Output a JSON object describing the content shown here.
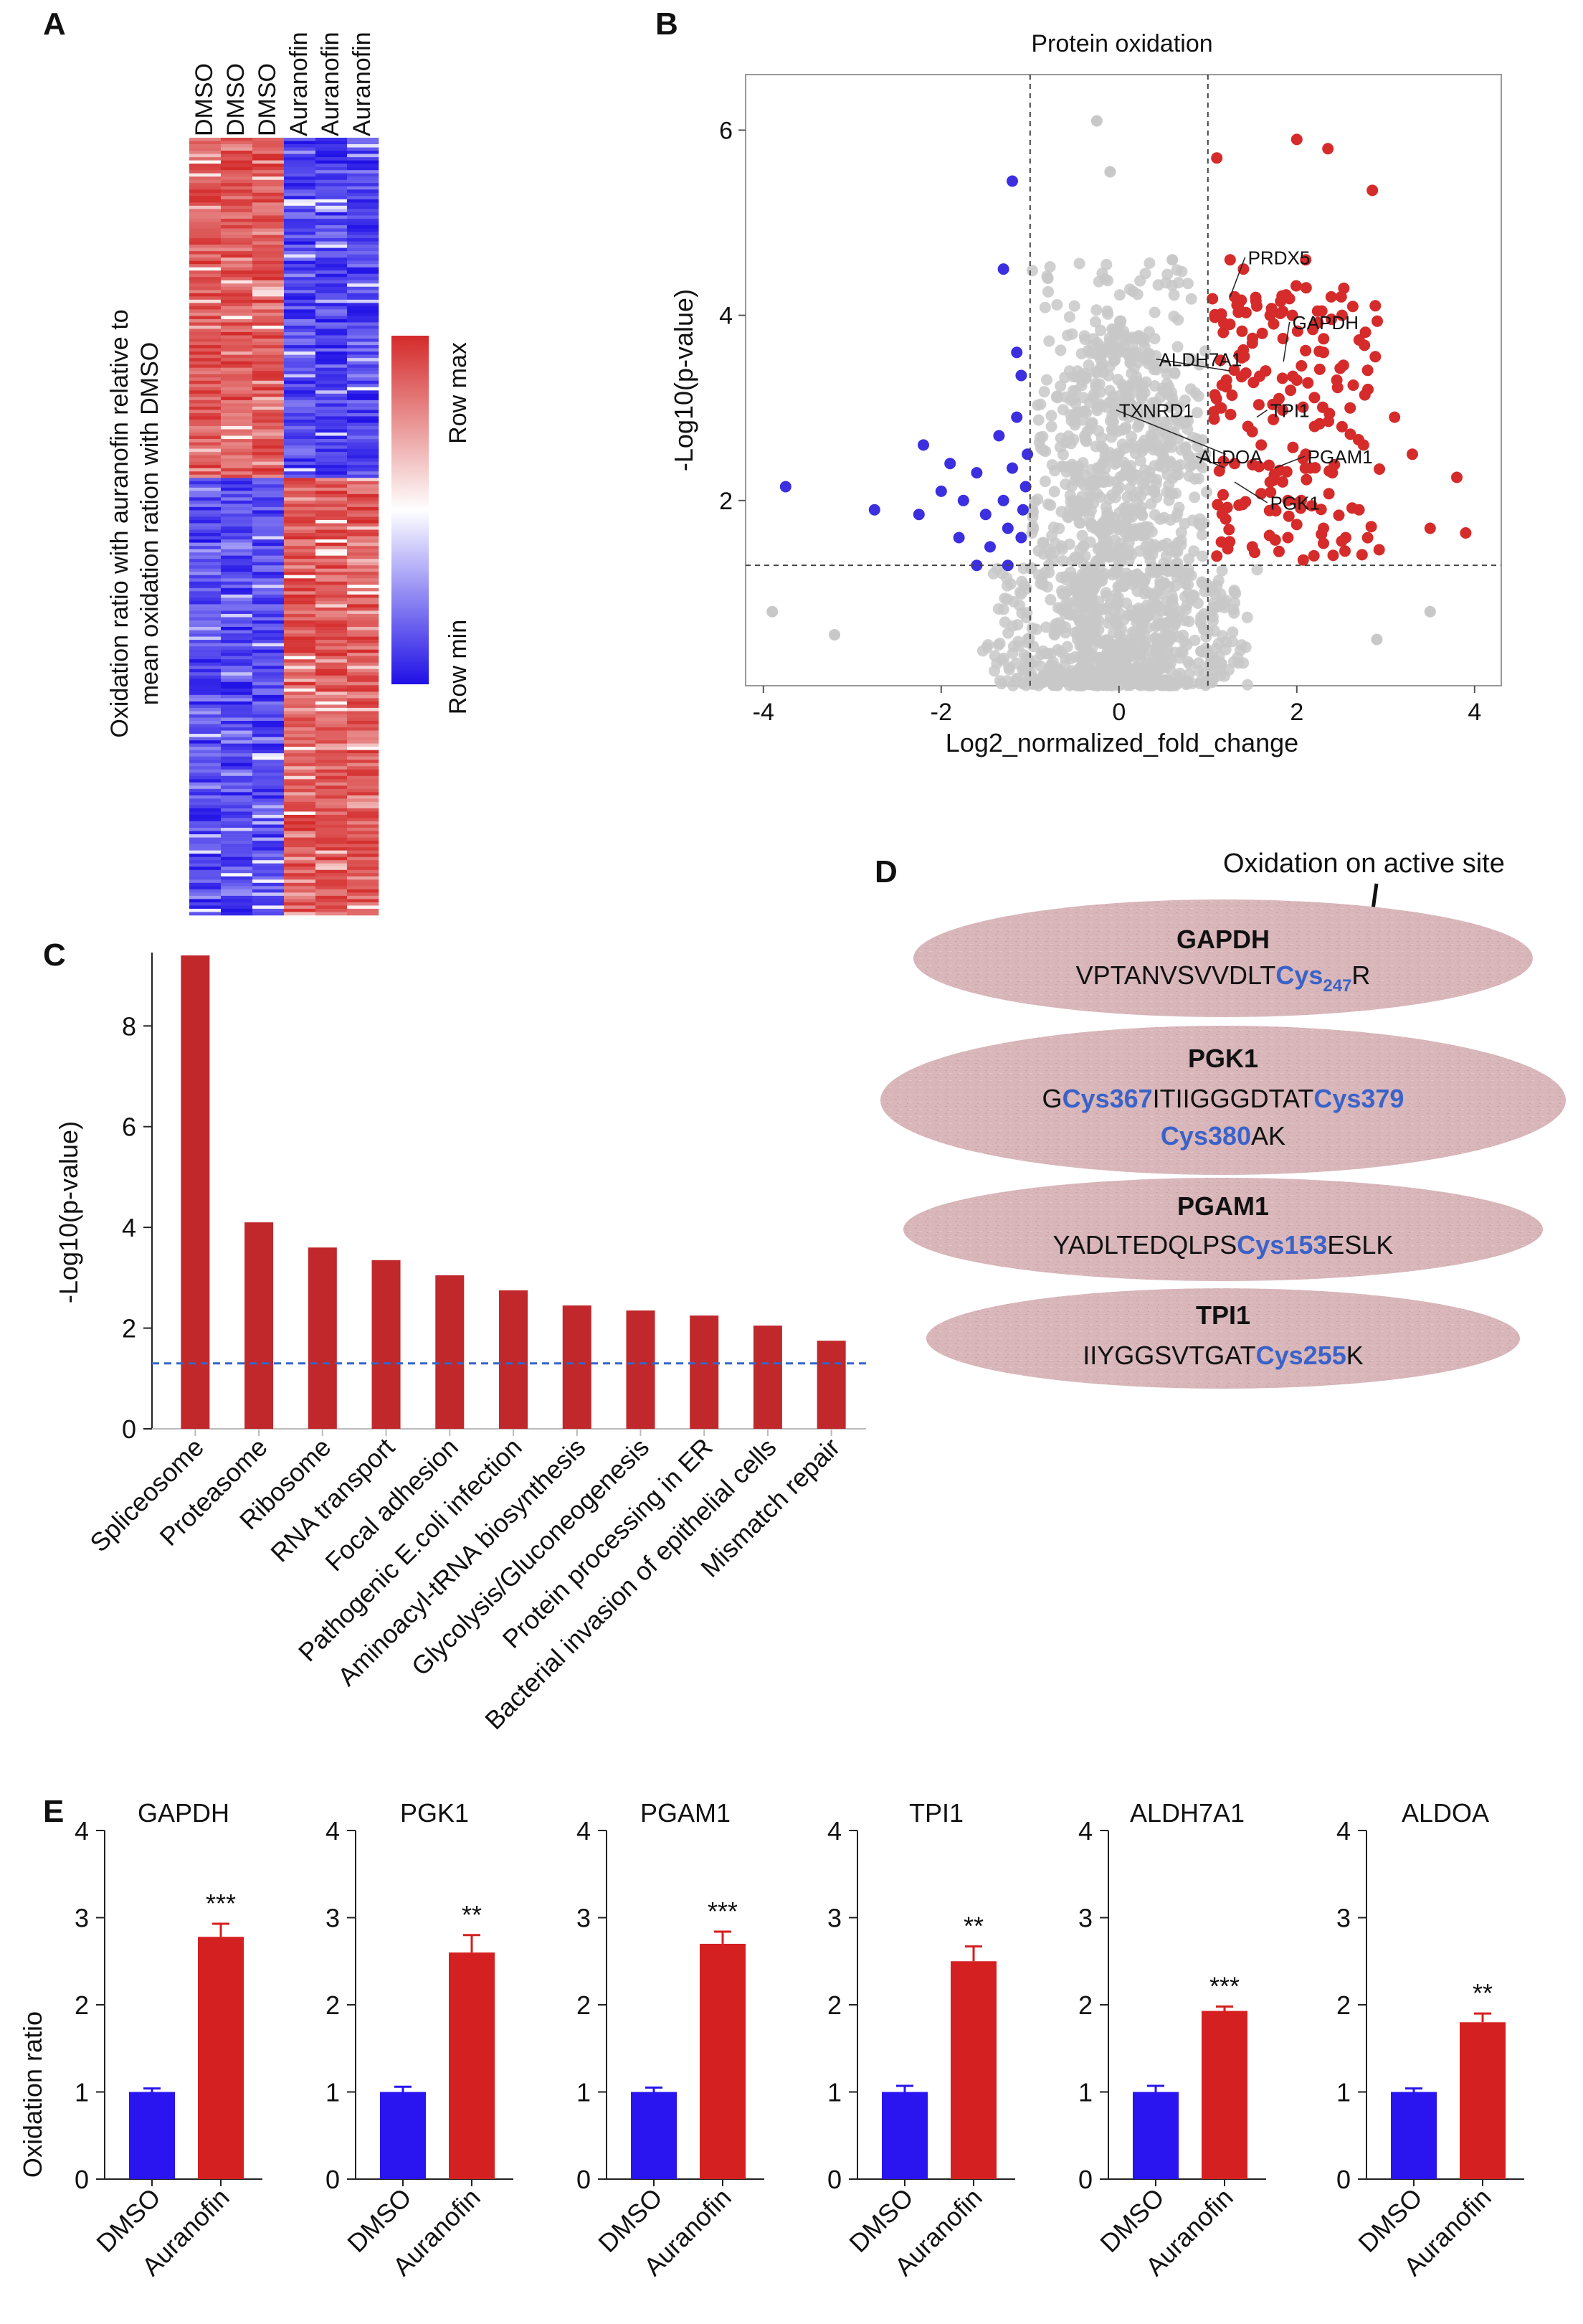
{
  "panels": {
    "A": {
      "letter": "A",
      "column_labels": [
        "DMSO",
        "DMSO",
        "DMSO",
        "Auranofin",
        "Auranofin",
        "Auranofin"
      ],
      "y_title_line1": "Oxidation ratio with auranofin relative to",
      "y_title_line2": "mean oxidation ration with DMSO",
      "legend_max": "Row max",
      "legend_min": "Row min",
      "colors": {
        "max": "#d42a2a",
        "mid": "#ffffff",
        "min": "#1f10e6"
      }
    },
    "B": {
      "letter": "B",
      "title": "Protein oxidation",
      "xlabel": "Log2_normalized_fold_change",
      "ylabel": "-Log10(p-value)",
      "x_ticks": [
        "-4",
        "-2",
        "0",
        "2",
        "4"
      ],
      "y_ticks": [
        "2",
        "4",
        "6"
      ],
      "labels": [
        "PRDX5",
        "GAPDH",
        "ALDH7A1",
        "TXNRD1",
        "TPI1",
        "ALDOA",
        "PGAM1",
        "PGK1"
      ],
      "colors": {
        "down": "#3b2fe0",
        "up": "#d62b2b",
        "ns": "#c8c8c8"
      }
    },
    "C": {
      "letter": "C",
      "ylabel": "-Log10(p-value)",
      "y_ticks": [
        "0",
        "2",
        "4",
        "6",
        "8"
      ],
      "bar_color": "#c0282c",
      "threshold_color": "#3366cc"
    },
    "D": {
      "letter": "D",
      "annotation": "Oxidation on active site",
      "peptides": [
        {
          "protein": "GAPDH",
          "seq_a": "VPTANVSVVDLT",
          "cys1": "Cys",
          "cys1_sub": "247",
          "seq_b": "R"
        },
        {
          "protein": "PGK1",
          "seq_a": "G",
          "cys1": "Cys367",
          "seq_b": "ITIIGGGDTAT",
          "cys2": "Cys379",
          "cys3": "Cys380",
          "seq_c": "AK"
        },
        {
          "protein": "PGAM1",
          "seq_a": "YADLTEDQLPS",
          "cys1": "Cys153",
          "seq_b": "ESLK"
        },
        {
          "protein": "TPI1",
          "seq_a": "IIYGGSVTGAT",
          "cys1": "Cys255",
          "seq_b": "K"
        }
      ],
      "ellipse_color": "#d8b4b8",
      "cys_color": "#3a62c8"
    },
    "E": {
      "letter": "E",
      "ylabel": "Oxidation ratio",
      "y_ticks": [
        "0",
        "1",
        "2",
        "3",
        "4"
      ],
      "colors": {
        "DMSO": "#2a14f0",
        "Auranofin": "#d42020"
      }
    }
  },
  "chart_data": [
    {
      "panel": "A",
      "type": "heatmap",
      "columns": [
        "DMSO",
        "DMSO",
        "DMSO",
        "Auranofin",
        "Auranofin",
        "Auranofin"
      ],
      "pattern": "upper block oxidized more in DMSO (red) vs Auranofin (blue); lower block the reverse",
      "scale": [
        "Row min",
        "Row max"
      ]
    },
    {
      "panel": "B",
      "type": "scatter",
      "title": "Protein oxidation",
      "xlabel": "Log2_normalized_fold_change",
      "ylabel": "-Log10(p-value)",
      "xlim": [
        -4.2,
        4.3
      ],
      "ylim": [
        0,
        6.6
      ],
      "vlines": [
        -1,
        1
      ],
      "hline": 1.3,
      "labeled_points": [
        {
          "name": "PRDX5",
          "x": 1.25,
          "y": 4.2
        },
        {
          "name": "GAPDH",
          "x": 1.85,
          "y": 3.5
        },
        {
          "name": "ALDH7A1",
          "x": 1.25,
          "y": 3.4
        },
        {
          "name": "TXNRD1",
          "x": 1.2,
          "y": 2.5
        },
        {
          "name": "TPI1",
          "x": 1.55,
          "y": 2.9
        },
        {
          "name": "ALDOA",
          "x": 1.2,
          "y": 2.35
        },
        {
          "name": "PGAM1",
          "x": 1.75,
          "y": 2.35
        },
        {
          "name": "PGK1",
          "x": 1.3,
          "y": 2.2
        }
      ],
      "down_points": [
        [
          -3.75,
          2.15
        ],
        [
          -2.75,
          1.9
        ],
        [
          -2.25,
          1.85
        ],
        [
          -2.2,
          2.6
        ],
        [
          -2.0,
          2.1
        ],
        [
          -1.9,
          2.4
        ],
        [
          -1.8,
          1.6
        ],
        [
          -1.75,
          2.0
        ],
        [
          -1.6,
          2.3
        ],
        [
          -1.5,
          1.85
        ],
        [
          -1.45,
          1.5
        ],
        [
          -1.35,
          2.7
        ],
        [
          -1.3,
          2.0
        ],
        [
          -1.25,
          1.7
        ],
        [
          -1.2,
          2.35
        ],
        [
          -1.15,
          3.6
        ],
        [
          -1.1,
          1.6
        ],
        [
          -1.08,
          1.9
        ],
        [
          -1.1,
          3.35
        ],
        [
          -1.05,
          2.15
        ],
        [
          -1.03,
          2.5
        ],
        [
          -1.2,
          5.45
        ],
        [
          -1.3,
          4.5
        ],
        [
          -1.25,
          1.3
        ],
        [
          -1.15,
          2.9
        ],
        [
          -1.6,
          1.3
        ]
      ],
      "up_points": [
        [
          1.1,
          5.7
        ],
        [
          1.3,
          4.2
        ],
        [
          2.0,
          5.9
        ],
        [
          2.35,
          5.8
        ],
        [
          2.85,
          5.35
        ],
        [
          1.4,
          4.5
        ],
        [
          1.5,
          3.7
        ],
        [
          1.6,
          2.6
        ],
        [
          1.7,
          4.0
        ],
        [
          1.8,
          3.1
        ],
        [
          1.9,
          2.0
        ],
        [
          2.0,
          3.3
        ],
        [
          2.1,
          4.6
        ],
        [
          2.2,
          2.8
        ],
        [
          2.3,
          3.6
        ],
        [
          2.4,
          2.3
        ],
        [
          2.5,
          4.2
        ],
        [
          2.6,
          3.0
        ],
        [
          2.7,
          1.9
        ],
        [
          2.8,
          3.2
        ],
        [
          3.3,
          2.5
        ],
        [
          3.8,
          2.25
        ],
        [
          3.9,
          1.65
        ],
        [
          1.2,
          1.8
        ],
        [
          1.3,
          2.4
        ],
        [
          1.5,
          1.5
        ],
        [
          1.7,
          2.2
        ],
        [
          1.9,
          1.6
        ],
        [
          2.1,
          2.5
        ],
        [
          2.3,
          1.7
        ],
        [
          1.15,
          3.0
        ],
        [
          1.45,
          2.8
        ],
        [
          1.65,
          3.4
        ],
        [
          2.05,
          2.0
        ],
        [
          2.45,
          3.3
        ],
        [
          2.75,
          2.6
        ],
        [
          1.25,
          4.6
        ],
        [
          1.55,
          4.1
        ],
        [
          1.95,
          4.0
        ],
        [
          2.2,
          3.9
        ],
        [
          3.1,
          2.9
        ],
        [
          1.1,
          1.4
        ],
        [
          1.35,
          1.95
        ],
        [
          1.8,
          1.45
        ],
        [
          2.55,
          1.6
        ],
        [
          3.5,
          1.7
        ]
      ]
    },
    {
      "panel": "C",
      "type": "bar",
      "categories": [
        "Spliceosome",
        "Proteasome",
        "Ribosome",
        "RNA transport",
        "Focal adhesion",
        "Pathogenic E.coli infection",
        "Aminoacyl-tRNA biosynthesis",
        "Glycolysis/Gluconeogenesis",
        "Protein processing in ER",
        "Bacterial invasion of epithelial cells",
        "Mismatch repair"
      ],
      "values": [
        9.4,
        4.1,
        3.6,
        3.35,
        3.05,
        2.75,
        2.45,
        2.35,
        2.25,
        2.05,
        1.75
      ],
      "ylabel": "-Log10(p-value)",
      "ylim": [
        0,
        9.4
      ],
      "threshold": 1.3
    },
    {
      "panel": "E",
      "type": "bar",
      "ylabel": "Oxidation ratio",
      "ylim": [
        0,
        4
      ],
      "groups": [
        "DMSO",
        "Auranofin"
      ],
      "charts": [
        {
          "title": "GAPDH",
          "values": [
            1.0,
            2.78
          ],
          "errors": [
            0.04,
            0.15
          ],
          "sig": "***"
        },
        {
          "title": "PGK1",
          "values": [
            1.0,
            2.6
          ],
          "errors": [
            0.06,
            0.2
          ],
          "sig": "**"
        },
        {
          "title": "PGAM1",
          "values": [
            1.0,
            2.7
          ],
          "errors": [
            0.05,
            0.14
          ],
          "sig": "***"
        },
        {
          "title": "TPI1",
          "values": [
            1.0,
            2.5
          ],
          "errors": [
            0.07,
            0.17
          ],
          "sig": "**"
        },
        {
          "title": "ALDH7A1",
          "values": [
            1.0,
            1.93
          ],
          "errors": [
            0.07,
            0.05
          ],
          "sig": "***"
        },
        {
          "title": "ALDOA",
          "values": [
            1.0,
            1.8
          ],
          "errors": [
            0.04,
            0.1
          ],
          "sig": "**"
        }
      ]
    }
  ]
}
